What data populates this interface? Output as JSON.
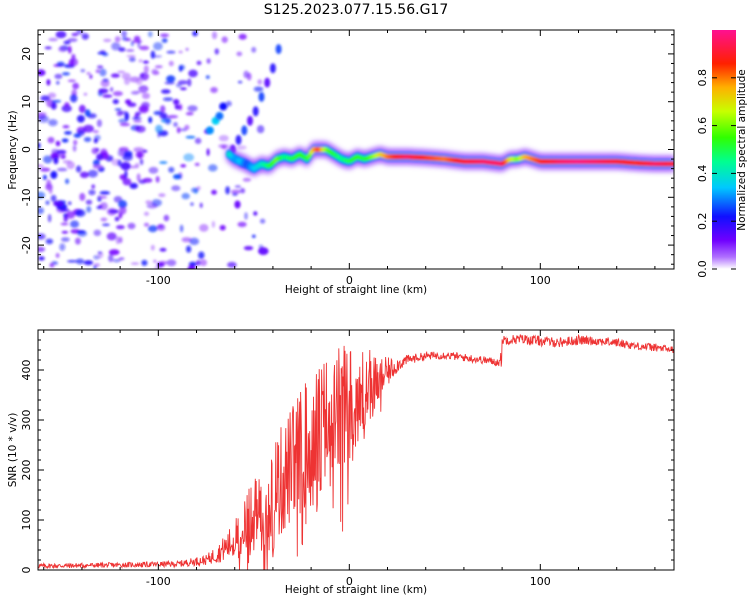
{
  "title": "S125.2023.077.15.56.G17",
  "chart_data": [
    {
      "type": "heatmap",
      "name": "spectrogram",
      "xlabel": "Height of straight line (km)",
      "ylabel": "Frequency (Hz)",
      "xlim": [
        -163,
        170
      ],
      "ylim": [
        -25,
        25
      ],
      "xticks": [
        -100,
        0,
        100
      ],
      "xtick_labels": [
        "-100",
        "0",
        "100"
      ],
      "yticks": [
        -20,
        -10,
        0,
        10,
        20
      ],
      "ytick_labels": [
        "-20",
        "-10",
        "0",
        "10",
        "20"
      ],
      "ridge": {
        "description": "dominant frequency track (Hz) vs height (km)",
        "x": [
          -63,
          -60,
          -57,
          -54,
          -50,
          -46,
          -42,
          -38,
          -34,
          -30,
          -26,
          -22,
          -19,
          -16,
          -12,
          -8,
          -4,
          0,
          4,
          8,
          12,
          16,
          20,
          30,
          40,
          50,
          60,
          70,
          80,
          84,
          88,
          92,
          96,
          100,
          110,
          120,
          130,
          140,
          150,
          160,
          170
        ],
        "y": [
          -1,
          -2,
          -2.5,
          -3,
          -4,
          -3,
          -3.5,
          -2,
          -1.5,
          -2,
          -1,
          -2,
          0,
          0,
          0,
          -1,
          -2,
          -2.5,
          -1.5,
          -2,
          -1.5,
          -1,
          -1.5,
          -1.5,
          -1.7,
          -2,
          -2.5,
          -2.5,
          -3,
          -2,
          -2,
          -1.5,
          -2,
          -2.5,
          -2.5,
          -2.5,
          -2.5,
          -2.5,
          -2.8,
          -3,
          -3
        ],
        "amplitude": [
          0.4,
          0.3,
          0.35,
          0.25,
          0.35,
          0.4,
          0.5,
          0.6,
          0.45,
          0.5,
          0.55,
          0.5,
          0.75,
          0.85,
          0.6,
          0.5,
          0.45,
          0.5,
          0.55,
          0.5,
          0.6,
          0.7,
          0.8,
          0.95,
          0.85,
          0.8,
          0.9,
          0.95,
          0.95,
          0.7,
          0.6,
          0.75,
          0.8,
          0.85,
          0.95,
          0.98,
          0.95,
          0.9,
          0.85,
          0.95,
          0.9
        ]
      },
      "rising_tail": {
        "description": "upward chirp feature near -60 to -35 km",
        "x": [
          -61,
          -58,
          -55,
          -52,
          -49,
          -46,
          -43,
          -40,
          -37
        ],
        "y": [
          0,
          2,
          4,
          6,
          8,
          11,
          14,
          17,
          21
        ]
      },
      "noise_region": {
        "description": "low-amplitude scattered noise below about -60 km",
        "xlim": [
          -163,
          -60
        ],
        "amplitude_range": [
          0.05,
          0.25
        ]
      }
    },
    {
      "type": "colorbar",
      "name": "colorbar",
      "label": "Normalized spectral amplitude",
      "range": [
        0,
        1
      ],
      "ticks": [
        0.0,
        0.2,
        0.4,
        0.6,
        0.8
      ],
      "tick_labels": [
        "0.0",
        "0.2",
        "0.4",
        "0.6",
        "0.8"
      ]
    },
    {
      "type": "line",
      "name": "snr",
      "xlabel": "Height of straight line (km)",
      "ylabel": "SNR (10 * v/v)",
      "xlim": [
        -163,
        170
      ],
      "ylim": [
        0,
        480
      ],
      "xticks": [
        -100,
        0,
        100
      ],
      "xtick_labels": [
        "-100",
        "0",
        "100"
      ],
      "yticks": [
        0,
        100,
        200,
        300,
        400
      ],
      "ytick_labels": [
        "0",
        "100",
        "200",
        "300",
        "400"
      ],
      "color": "#ee3333",
      "envelope": {
        "x": [
          -163,
          -120,
          -90,
          -75,
          -68,
          -60,
          -50,
          -40,
          -30,
          -20,
          -10,
          0,
          5,
          10,
          15,
          20,
          25,
          30,
          40,
          50,
          60,
          70,
          79,
          80,
          90,
          100,
          110,
          120,
          130,
          140,
          150,
          160,
          170
        ],
        "y": [
          8,
          10,
          12,
          20,
          35,
          60,
          110,
          150,
          210,
          270,
          300,
          330,
          350,
          365,
          380,
          395,
          410,
          420,
          428,
          430,
          425,
          420,
          415,
          460,
          462,
          458,
          455,
          460,
          458,
          455,
          448,
          445,
          440
        ],
        "noise_amplitude": [
          5,
          5,
          6,
          10,
          20,
          40,
          80,
          110,
          120,
          130,
          140,
          130,
          110,
          80,
          50,
          30,
          15,
          10,
          8,
          8,
          8,
          8,
          8,
          10,
          10,
          10,
          10,
          10,
          9,
          9,
          8,
          8,
          8
        ]
      }
    }
  ]
}
